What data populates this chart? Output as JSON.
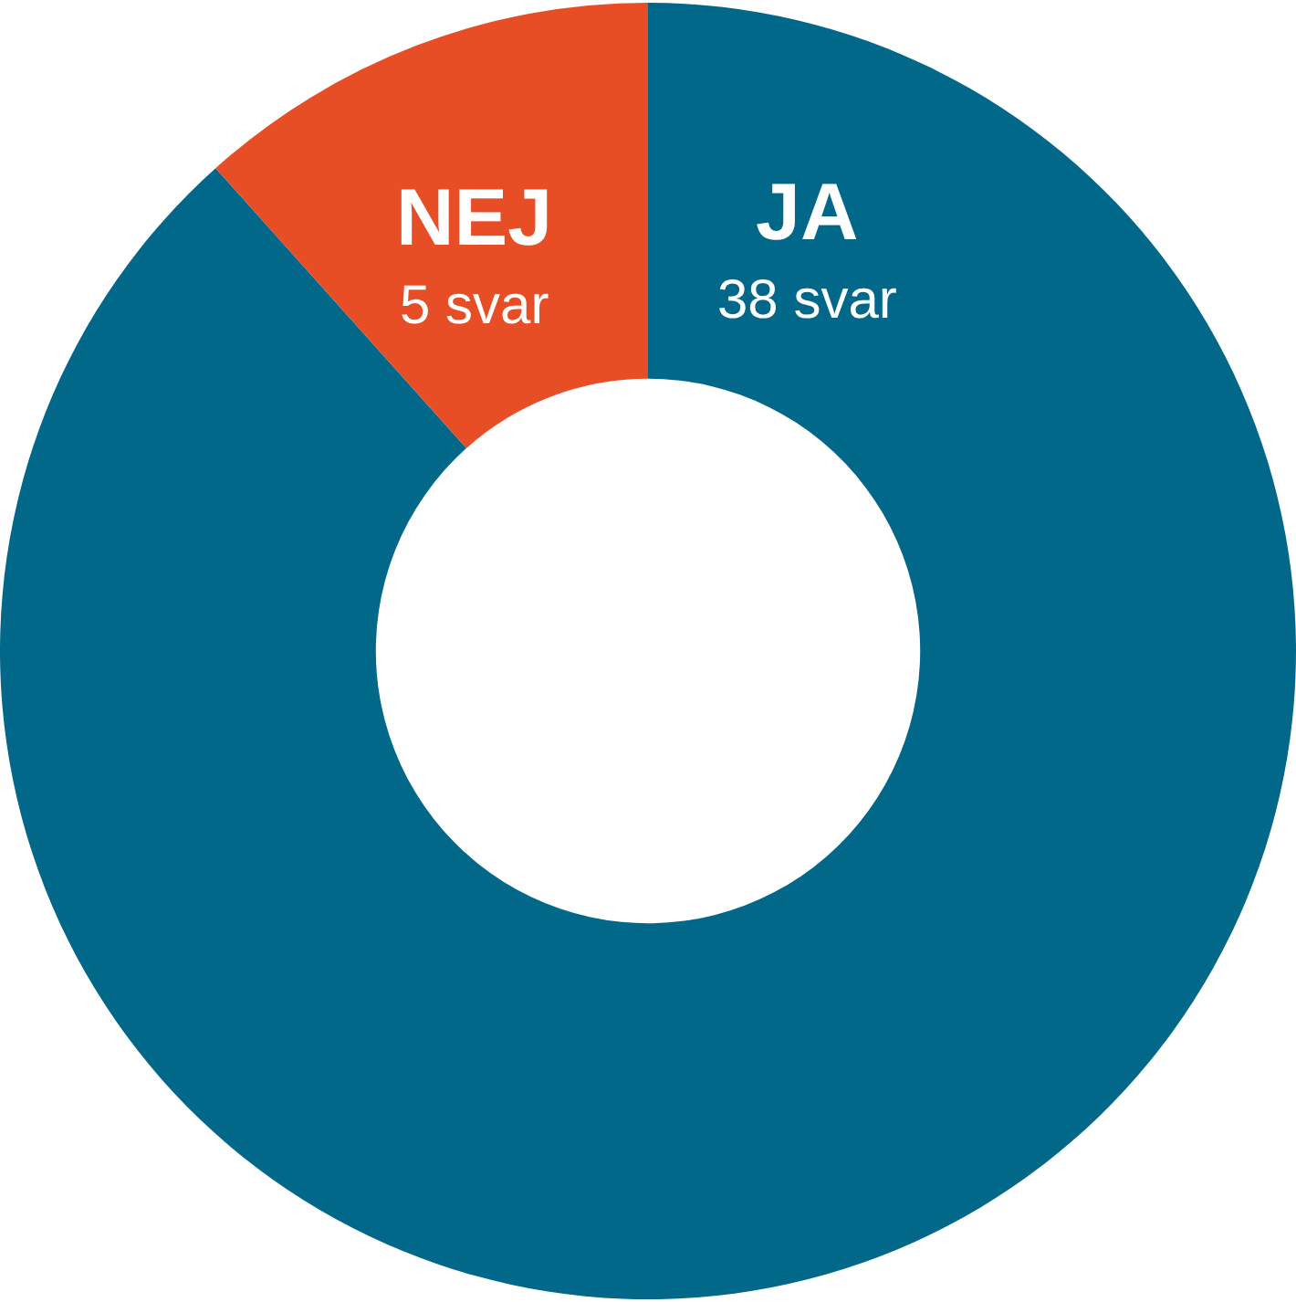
{
  "chart_data": {
    "type": "donut",
    "categories": [
      "JA",
      "NEJ"
    ],
    "values": [
      38,
      5
    ],
    "colors": [
      "#02688a",
      "#e84e26"
    ],
    "value_labels": [
      "38 svar",
      "5 svar"
    ],
    "legend": false
  }
}
